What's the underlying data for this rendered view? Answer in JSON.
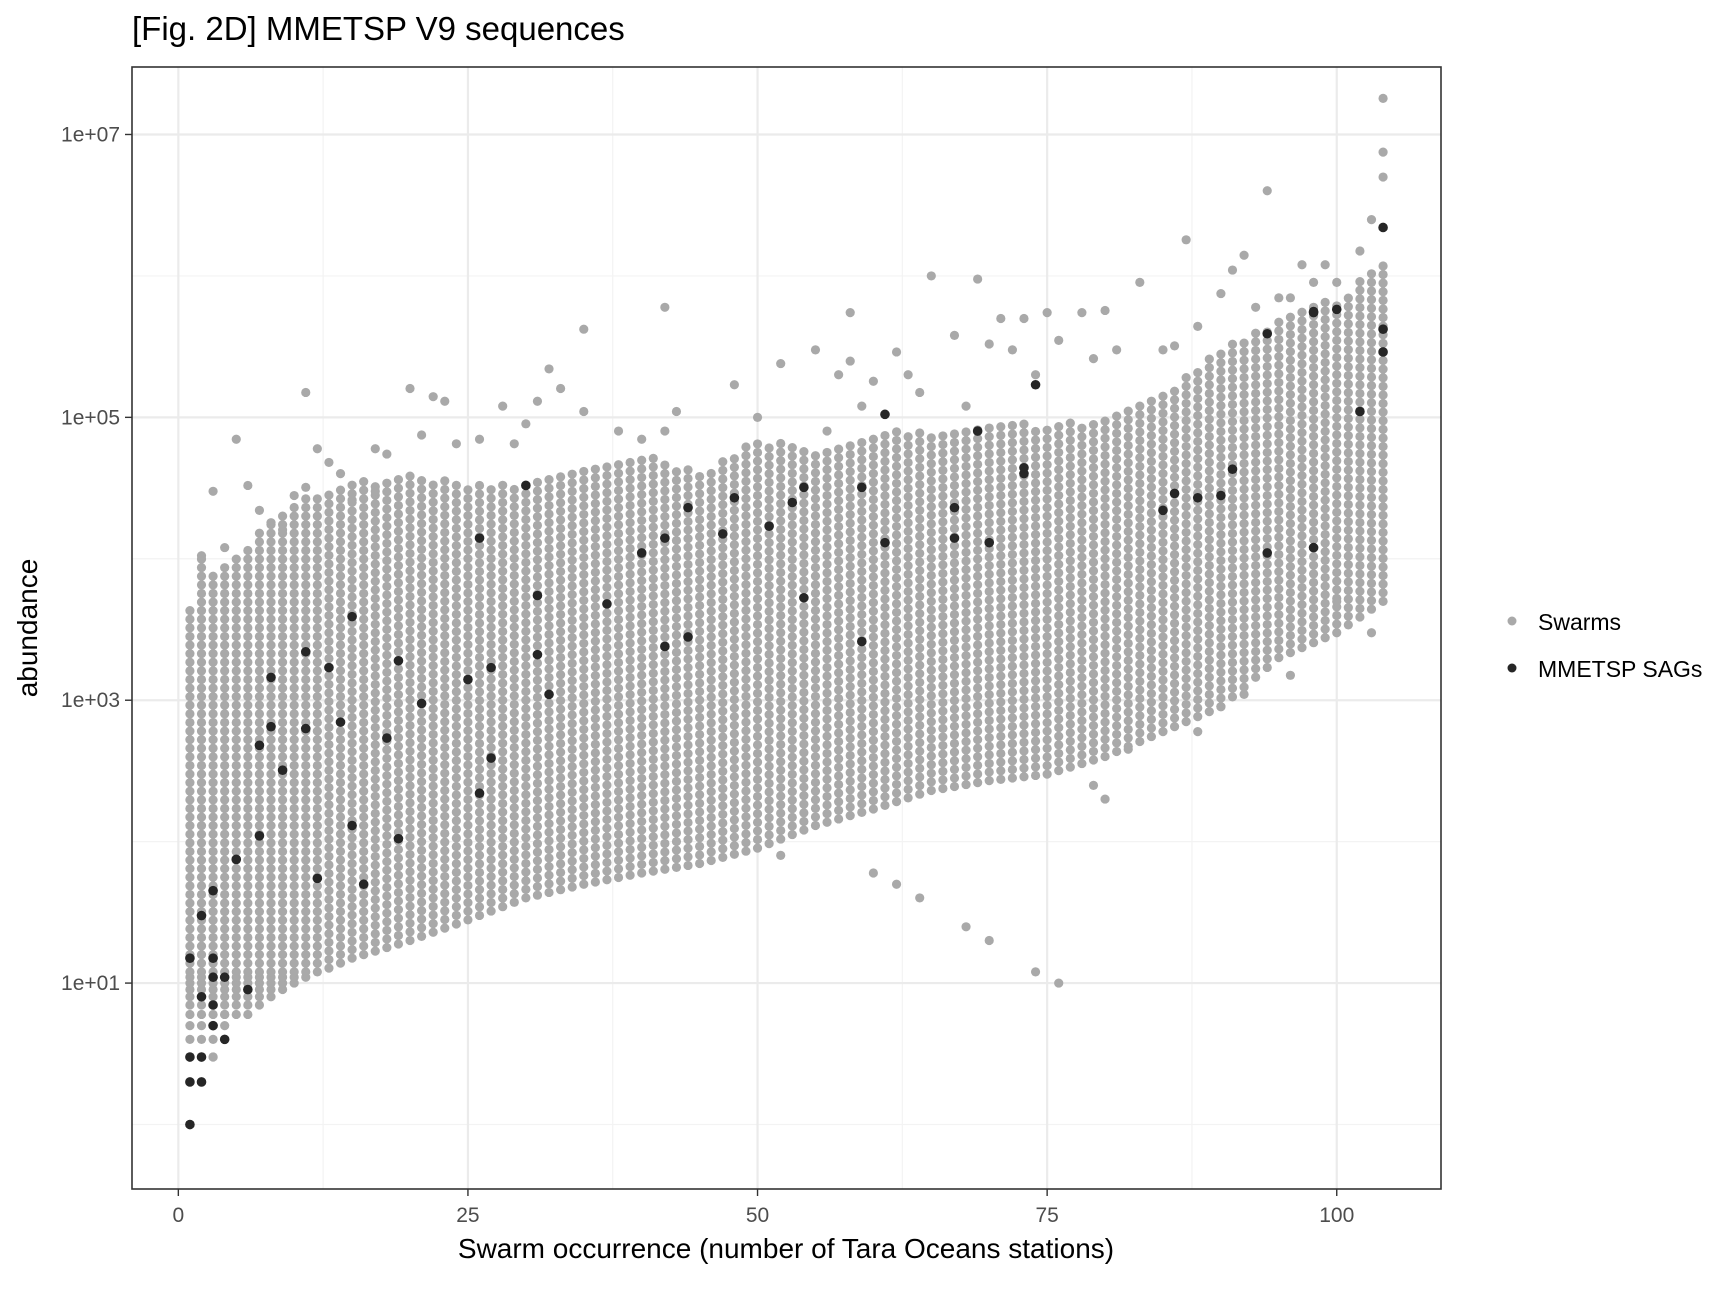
{
  "chart_data": {
    "type": "scatter",
    "title": "[Fig. 2D] MMETSP V9 sequences",
    "xlabel": "Swarm occurrence (number of Tara Oceans stations)",
    "ylabel": "abundance",
    "xlim": [
      -4,
      109
    ],
    "ylim": [
      0.35,
      30000000
    ],
    "yscale": "log10",
    "x_ticks": [
      0,
      25,
      50,
      75,
      100
    ],
    "x_tick_labels": [
      "0",
      "25",
      "50",
      "75",
      "100"
    ],
    "y_ticks": [
      10,
      1000,
      100000,
      10000000
    ],
    "y_tick_labels": [
      "1e+01",
      "1e+03",
      "1e+05",
      "1e+07"
    ],
    "grid": true,
    "legend_position": "right",
    "colors": {
      "swarms": "#a9a9a9",
      "sags": "#262626",
      "grid_major": "#ebebeb",
      "grid_minor": "#f3f3f3",
      "panel_border": "#333333"
    },
    "series": [
      {
        "name": "Swarms",
        "color": "#a9a9a9",
        "envelope": {
          "x": [
            1,
            2,
            3,
            5,
            8,
            10,
            15,
            20,
            25,
            30,
            35,
            40,
            45,
            50,
            55,
            60,
            65,
            70,
            75,
            80,
            85,
            90,
            95,
            100,
            104
          ],
          "y_min": [
            1,
            2,
            3,
            5,
            8,
            10,
            15,
            20,
            28,
            40,
            50,
            60,
            70,
            90,
            130,
            170,
            230,
            270,
            300,
            400,
            600,
            900,
            2000,
            3000,
            5000
          ],
          "y_max": [
            4000,
            10000,
            8000,
            10000,
            20000,
            25000,
            35000,
            40000,
            35000,
            35000,
            45000,
            55000,
            40000,
            70000,
            60000,
            80000,
            80000,
            90000,
            90000,
            100000,
            150000,
            300000,
            500000,
            700000,
            1200000
          ]
        },
        "outliers": [
          [
            1,
            4300
          ],
          [
            2,
            10500
          ],
          [
            3,
            30000
          ],
          [
            4,
            12000
          ],
          [
            5,
            70000
          ],
          [
            6,
            33000
          ],
          [
            7,
            22000
          ],
          [
            8,
            18000
          ],
          [
            9,
            16000
          ],
          [
            10,
            28000
          ],
          [
            11,
            32000
          ],
          [
            11,
            150000
          ],
          [
            12,
            60000
          ],
          [
            13,
            48000
          ],
          [
            14,
            40000
          ],
          [
            15,
            26000
          ],
          [
            17,
            30000
          ],
          [
            17,
            60000
          ],
          [
            18,
            55000
          ],
          [
            20,
            160000
          ],
          [
            21,
            75000
          ],
          [
            22,
            140000
          ],
          [
            23,
            130000
          ],
          [
            24,
            65000
          ],
          [
            26,
            70000
          ],
          [
            28,
            120000
          ],
          [
            29,
            65000
          ],
          [
            30,
            90000
          ],
          [
            31,
            130000
          ],
          [
            32,
            220000
          ],
          [
            33,
            160000
          ],
          [
            35,
            420000
          ],
          [
            35,
            110000
          ],
          [
            38,
            80000
          ],
          [
            40,
            70000
          ],
          [
            42,
            80000
          ],
          [
            42,
            600000
          ],
          [
            43,
            110000
          ],
          [
            48,
            170000
          ],
          [
            50,
            100000
          ],
          [
            52,
            240000
          ],
          [
            55,
            300000
          ],
          [
            56,
            80000
          ],
          [
            57,
            200000
          ],
          [
            58,
            550000
          ],
          [
            58,
            250000
          ],
          [
            59,
            120000
          ],
          [
            60,
            180000
          ],
          [
            62,
            290000
          ],
          [
            63,
            200000
          ],
          [
            64,
            150000
          ],
          [
            65,
            1000000
          ],
          [
            67,
            380000
          ],
          [
            68,
            120000
          ],
          [
            69,
            950000
          ],
          [
            70,
            330000
          ],
          [
            71,
            500000
          ],
          [
            72,
            300000
          ],
          [
            73,
            500000
          ],
          [
            74,
            200000
          ],
          [
            75,
            550000
          ],
          [
            76,
            350000
          ],
          [
            78,
            550000
          ],
          [
            79,
            260000
          ],
          [
            80,
            570000
          ],
          [
            81,
            300000
          ],
          [
            83,
            900000
          ],
          [
            85,
            300000
          ],
          [
            86,
            320000
          ],
          [
            87,
            1800000
          ],
          [
            88,
            440000
          ],
          [
            90,
            750000
          ],
          [
            91,
            1100000
          ],
          [
            92,
            1400000
          ],
          [
            93,
            600000
          ],
          [
            94,
            4000000
          ],
          [
            95,
            700000
          ],
          [
            96,
            700000
          ],
          [
            97,
            1200000
          ],
          [
            98,
            900000
          ],
          [
            99,
            1200000
          ],
          [
            100,
            900000
          ],
          [
            102,
            1500000
          ],
          [
            103,
            2500000
          ],
          [
            104,
            18000000
          ],
          [
            104,
            7500000
          ],
          [
            104,
            5000000
          ],
          [
            52,
            80
          ],
          [
            60,
            60
          ],
          [
            62,
            50
          ],
          [
            64,
            40
          ],
          [
            68,
            25
          ],
          [
            70,
            20
          ],
          [
            74,
            12
          ],
          [
            76,
            10
          ],
          [
            79,
            250
          ],
          [
            80,
            200
          ],
          [
            82,
            450
          ],
          [
            88,
            600
          ],
          [
            90,
            900
          ],
          [
            92,
            1100
          ],
          [
            96,
            1500
          ],
          [
            100,
            5000
          ],
          [
            103,
            3000
          ],
          [
            1,
            1
          ],
          [
            3,
            3
          ],
          [
            4,
            6
          ]
        ]
      },
      {
        "name": "MMETSP SAGs",
        "color": "#262626",
        "points": [
          [
            1,
            1
          ],
          [
            1,
            2
          ],
          [
            1,
            3
          ],
          [
            1,
            15
          ],
          [
            2,
            2
          ],
          [
            2,
            3
          ],
          [
            2,
            8
          ],
          [
            2,
            30
          ],
          [
            3,
            5
          ],
          [
            3,
            7
          ],
          [
            3,
            11
          ],
          [
            3,
            15
          ],
          [
            3,
            45
          ],
          [
            4,
            4
          ],
          [
            4,
            11
          ],
          [
            5,
            75
          ],
          [
            6,
            9
          ],
          [
            7,
            110
          ],
          [
            7,
            480
          ],
          [
            8,
            650
          ],
          [
            8,
            1450
          ],
          [
            9,
            320
          ],
          [
            11,
            630
          ],
          [
            11,
            2200
          ],
          [
            12,
            55
          ],
          [
            13,
            1700
          ],
          [
            14,
            700
          ],
          [
            15,
            130
          ],
          [
            15,
            3900
          ],
          [
            16,
            50
          ],
          [
            18,
            540
          ],
          [
            19,
            105
          ],
          [
            19,
            1900
          ],
          [
            21,
            950
          ],
          [
            25,
            1400
          ],
          [
            26,
            220
          ],
          [
            26,
            14000
          ],
          [
            27,
            390
          ],
          [
            27,
            1700
          ],
          [
            30,
            33000
          ],
          [
            31,
            2100
          ],
          [
            31,
            5500
          ],
          [
            32,
            1100
          ],
          [
            37,
            4800
          ],
          [
            40,
            11000
          ],
          [
            42,
            2400
          ],
          [
            42,
            14000
          ],
          [
            44,
            2800
          ],
          [
            44,
            23000
          ],
          [
            47,
            15000
          ],
          [
            48,
            27000
          ],
          [
            51,
            17000
          ],
          [
            53,
            25000
          ],
          [
            54,
            5300
          ],
          [
            54,
            32000
          ],
          [
            59,
            2600
          ],
          [
            59,
            32000
          ],
          [
            61,
            13000
          ],
          [
            61,
            105000
          ],
          [
            67,
            14000
          ],
          [
            67,
            23000
          ],
          [
            69,
            80000
          ],
          [
            70,
            13000
          ],
          [
            73,
            40000
          ],
          [
            73,
            44000
          ],
          [
            74,
            170000
          ],
          [
            85,
            22000
          ],
          [
            86,
            29000
          ],
          [
            88,
            27000
          ],
          [
            90,
            28000
          ],
          [
            91,
            43000
          ],
          [
            94,
            11000
          ],
          [
            94,
            390000
          ],
          [
            98,
            12000
          ],
          [
            98,
            550000
          ],
          [
            98,
            560000
          ],
          [
            100,
            580000
          ],
          [
            102,
            110000
          ],
          [
            104,
            290000
          ],
          [
            104,
            420000
          ],
          [
            104,
            2200000
          ]
        ]
      }
    ]
  }
}
